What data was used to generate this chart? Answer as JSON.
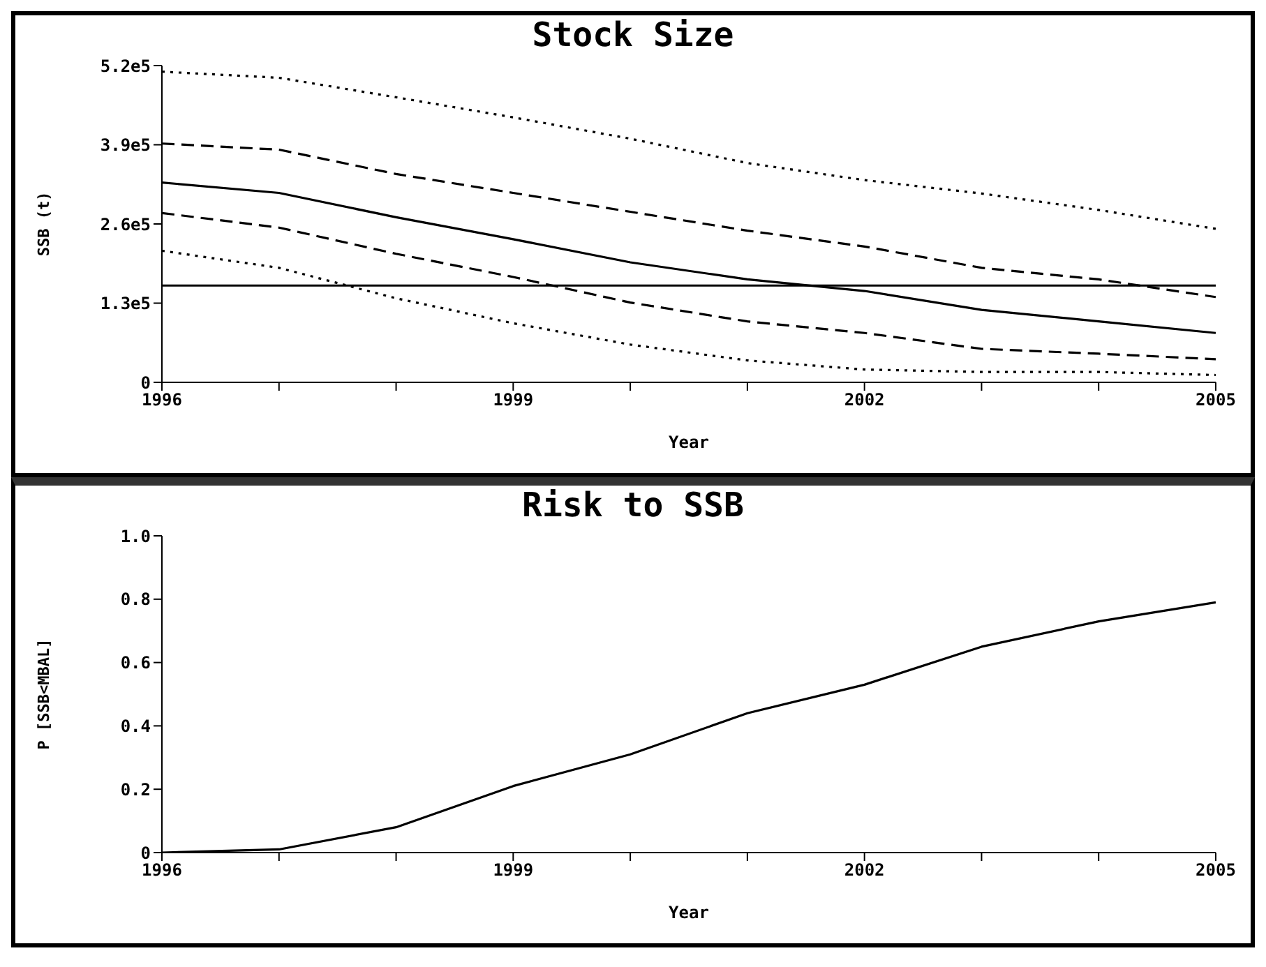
{
  "chart_data": [
    {
      "type": "line",
      "title": "Stock Size",
      "xlabel": "Year",
      "ylabel": "SSB (t)",
      "marker": "none",
      "x": [
        1996,
        1997,
        1998,
        1999,
        2000,
        2001,
        2002,
        2003,
        2004,
        2005
      ],
      "xlim": [
        1996,
        2005
      ],
      "xticks": [
        1996,
        {
          "value": 1997,
          "label": null
        },
        {
          "value": 1998,
          "label": null
        },
        1999,
        {
          "value": 2000,
          "label": null
        },
        {
          "value": 2001,
          "label": null
        },
        2002,
        {
          "value": 2003,
          "label": null
        },
        {
          "value": 2004,
          "label": null
        },
        2005
      ],
      "ylim": [
        0,
        520000
      ],
      "yticks": [
        0,
        {
          "value": 130000,
          "label": "1.3e5"
        },
        {
          "value": 260000,
          "label": "2.6e5"
        },
        {
          "value": 390000,
          "label": "3.9e5"
        },
        {
          "value": 520000,
          "label": "5.2e5"
        }
      ],
      "series": [
        {
          "color": "#000000",
          "line_style": "dotted",
          "values": [
            510000,
            500000,
            468000,
            435000,
            400000,
            360000,
            332000,
            310000,
            283000,
            252000
          ]
        },
        {
          "color": "#000000",
          "line_style": "dashed",
          "values": [
            392000,
            382000,
            342000,
            311000,
            280000,
            249000,
            223000,
            188000,
            169000,
            140000
          ]
        },
        {
          "color": "#000000",
          "line_style": "solid",
          "values": [
            328000,
            311000,
            271000,
            235000,
            197000,
            169000,
            150000,
            119000,
            100000,
            81000
          ]
        },
        {
          "color": "#000000",
          "line_style": "dashed",
          "values": [
            278000,
            254000,
            211000,
            173000,
            131000,
            100000,
            81000,
            55000,
            47000,
            38000
          ]
        },
        {
          "color": "#000000",
          "line_style": "dotted",
          "values": [
            216000,
            188000,
            138000,
            97000,
            62000,
            36000,
            21000,
            17000,
            17000,
            12000
          ]
        }
      ],
      "ref_lines": [
        {
          "axis": "y",
          "value": 159000,
          "color": "#000000",
          "line_style": "solid"
        }
      ]
    },
    {
      "type": "line",
      "title": "Risk to SSB",
      "xlabel": "Year",
      "ylabel": "P [SSB<MBAL]",
      "marker": "none",
      "x": [
        1996,
        1997,
        1998,
        1999,
        2000,
        2001,
        2002,
        2003,
        2004,
        2005
      ],
      "xlim": [
        1996,
        2005
      ],
      "xticks": [
        1996,
        {
          "value": 1997,
          "label": null
        },
        {
          "value": 1998,
          "label": null
        },
        1999,
        {
          "value": 2000,
          "label": null
        },
        {
          "value": 2001,
          "label": null
        },
        2002,
        {
          "value": 2003,
          "label": null
        },
        {
          "value": 2004,
          "label": null
        },
        2005
      ],
      "ylim": [
        0,
        1
      ],
      "yticks": [
        0,
        {
          "value": 0.2,
          "label": "0.2"
        },
        {
          "value": 0.4,
          "label": "0.4"
        },
        {
          "value": 0.6,
          "label": "0.6"
        },
        {
          "value": 0.8,
          "label": "0.8"
        },
        {
          "value": 1,
          "label": "1.0"
        }
      ],
      "series": [
        {
          "color": "#000000",
          "line_style": "solid",
          "values": [
            0,
            0.01,
            0.08,
            0.21,
            0.31,
            0.44,
            0.53,
            0.65,
            0.73,
            0.79
          ]
        }
      ]
    }
  ]
}
